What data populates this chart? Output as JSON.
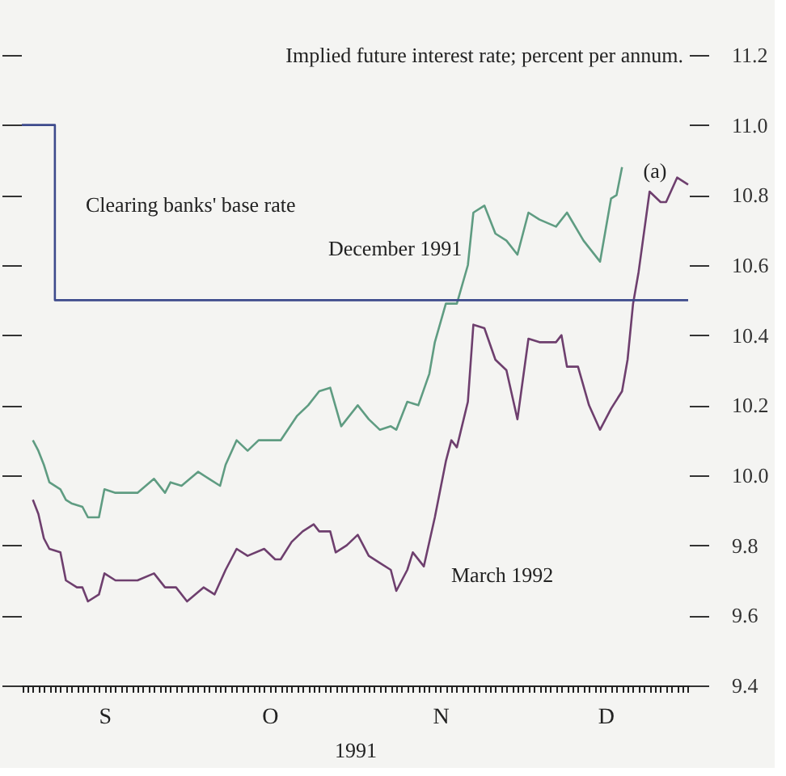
{
  "chart_data": {
    "type": "line",
    "ylabel": "Implied future interest rate; percent per annum.",
    "xlabel": "1991",
    "categories": [
      null,
      null,
      null,
      null,
      null,
      null,
      null,
      null,
      null,
      null,
      null,
      null,
      null,
      null,
      null,
      "S",
      null,
      null,
      null,
      null,
      null,
      null,
      null,
      null,
      null,
      null,
      null,
      null,
      null,
      null,
      null,
      null,
      null,
      null,
      null,
      null,
      null,
      null,
      null,
      null,
      null,
      null,
      null,
      null,
      null,
      "O",
      null,
      null,
      null,
      null,
      null,
      null,
      null,
      null,
      null,
      null,
      null,
      null,
      null,
      null,
      null,
      null,
      null,
      null,
      null,
      null,
      null,
      null,
      null,
      null,
      null,
      null,
      null,
      null,
      null,
      null,
      "N",
      null,
      null,
      null,
      null,
      null,
      null,
      null,
      null,
      null,
      null,
      null,
      null,
      null,
      null,
      null,
      null,
      null,
      null,
      null,
      null,
      null,
      null,
      null,
      null,
      null,
      null,
      null,
      null,
      null,
      "D",
      null,
      null,
      null,
      null,
      null,
      null,
      null,
      null,
      null,
      null,
      null,
      null,
      null,
      null,
      null
    ],
    "ylim": [
      9.4,
      11.2
    ],
    "yticks": [
      {
        "value": 9.4,
        "label": "9.4"
      },
      {
        "value": 9.6,
        "label": "9.6"
      },
      {
        "value": 9.8,
        "label": "9.8"
      },
      {
        "value": 10.0,
        "label": "10.0"
      },
      {
        "value": 10.2,
        "label": "10.2"
      },
      {
        "value": 10.4,
        "label": "10.4"
      },
      {
        "value": 10.6,
        "label": "10.6"
      },
      {
        "value": 10.8,
        "label": "10.8"
      },
      {
        "value": 11.0,
        "label": "11.0"
      },
      {
        "value": 11.2,
        "label": "11.2"
      }
    ],
    "grid": false,
    "marker": "none",
    "line_style": "solid",
    "annotations": [
      "(a)"
    ],
    "series": [
      {
        "name": "December 1991",
        "color": "#5f9c82",
        "values": [
          null,
          null,
          10.1,
          10.07,
          10.03,
          9.98,
          null,
          9.96,
          9.93,
          9.92,
          null,
          9.91,
          9.88,
          null,
          9.88,
          9.96,
          null,
          9.95,
          9.95,
          9.95,
          null,
          9.95,
          null,
          null,
          9.99,
          null,
          9.95,
          9.98,
          null,
          9.97,
          null,
          null,
          10.01,
          null,
          9.99,
          null,
          9.97,
          10.03,
          null,
          10.1,
          null,
          10.07,
          null,
          10.1,
          null,
          10.1,
          null,
          10.1,
          null,
          null,
          10.17,
          null,
          10.2,
          null,
          10.24,
          null,
          10.25,
          null,
          10.14,
          10.16,
          null,
          10.2,
          null,
          10.16,
          null,
          10.13,
          null,
          10.14,
          10.13,
          null,
          10.21,
          null,
          10.2,
          null,
          10.29,
          10.38,
          null,
          10.49,
          10.49,
          10.49,
          null,
          10.6,
          10.75,
          null,
          10.77,
          null,
          10.69,
          null,
          10.67,
          null,
          10.63,
          null,
          10.75,
          null,
          10.73,
          null,
          null,
          10.71,
          null,
          10.75,
          null,
          null,
          10.67,
          null,
          null,
          10.61,
          10.7,
          10.79,
          10.8,
          10.88,
          null,
          null,
          null,
          null,
          null,
          null,
          null,
          null,
          null,
          null,
          null,
          null
        ]
      },
      {
        "name": "March 1992",
        "color": "#6e3f6e",
        "values": [
          null,
          null,
          9.93,
          9.89,
          9.82,
          9.79,
          null,
          9.78,
          9.7,
          null,
          9.68,
          9.68,
          9.64,
          null,
          9.66,
          9.72,
          null,
          9.7,
          null,
          null,
          null,
          9.7,
          null,
          null,
          9.72,
          null,
          9.68,
          null,
          9.68,
          null,
          9.64,
          null,
          null,
          9.68,
          null,
          9.66,
          null,
          9.73,
          null,
          9.79,
          null,
          9.77,
          null,
          null,
          9.79,
          null,
          9.76,
          9.76,
          null,
          9.81,
          null,
          9.84,
          null,
          9.86,
          9.84,
          null,
          9.84,
          9.78,
          null,
          9.8,
          null,
          9.83,
          null,
          9.77,
          null,
          9.75,
          null,
          9.73,
          9.67,
          null,
          9.73,
          9.78,
          null,
          9.74,
          null,
          9.88,
          null,
          10.04,
          10.1,
          10.08,
          null,
          10.21,
          10.43,
          null,
          10.42,
          null,
          10.33,
          null,
          10.3,
          null,
          10.16,
          null,
          10.39,
          null,
          10.38,
          null,
          null,
          10.38,
          10.4,
          10.31,
          null,
          10.31,
          null,
          10.2,
          null,
          10.13,
          null,
          10.19,
          null,
          10.24,
          10.33,
          10.49,
          10.58,
          null,
          10.81,
          null,
          10.78,
          10.78,
          null,
          10.85,
          null,
          10.83
        ]
      },
      {
        "name": "Clearing banks' base rate",
        "color": "#3d4a8c",
        "type": "step",
        "values": [
          11.0,
          null,
          null,
          null,
          null,
          null,
          10.5,
          null,
          null,
          null,
          null,
          null,
          null,
          null,
          null,
          null,
          null,
          null,
          null,
          null,
          null,
          null,
          null,
          null,
          null,
          null,
          null,
          null,
          null,
          null,
          null,
          null,
          null,
          null,
          null,
          null,
          null,
          null,
          null,
          null,
          null,
          null,
          null,
          null,
          null,
          null,
          null,
          null,
          null,
          null,
          null,
          null,
          null,
          null,
          null,
          null,
          null,
          null,
          null,
          null,
          null,
          null,
          null,
          null,
          null,
          null,
          null,
          null,
          null,
          null,
          null,
          null,
          null,
          null,
          null,
          null,
          null,
          null,
          null,
          null,
          null,
          null,
          null,
          null,
          null,
          null,
          null,
          null,
          null,
          null,
          null,
          null,
          null,
          null,
          null,
          null,
          null,
          null,
          null,
          null,
          null,
          null,
          null,
          null,
          null,
          null,
          null,
          null,
          null,
          null,
          null,
          null,
          null,
          null,
          null,
          null,
          null,
          null,
          null,
          null,
          null,
          10.5
        ]
      }
    ]
  }
}
